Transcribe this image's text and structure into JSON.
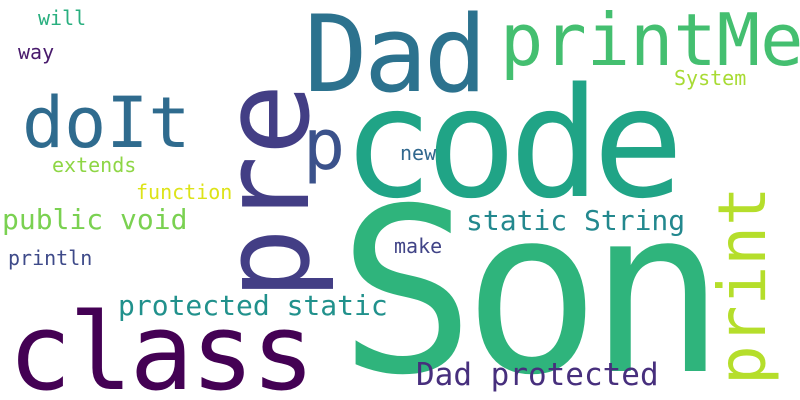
{
  "words": [
    {
      "text": "Son",
      "color": "#2fb47c"
    },
    {
      "text": "code",
      "color": "#20a486"
    },
    {
      "text": "pre",
      "color": "#433e85"
    },
    {
      "text": "class",
      "color": "#440154"
    },
    {
      "text": "Dad",
      "color": "#2c728e"
    },
    {
      "text": "printMe",
      "color": "#44bf70"
    },
    {
      "text": "doIt",
      "color": "#2f6b8e"
    },
    {
      "text": "print",
      "color": "#b5de2b"
    },
    {
      "text": "p",
      "color": "#3b528b"
    },
    {
      "text": "Dad protected",
      "color": "#472f7d"
    },
    {
      "text": "static String",
      "color": "#23888e"
    },
    {
      "text": "protected static",
      "color": "#21918c"
    },
    {
      "text": "public void",
      "color": "#7ad151"
    },
    {
      "text": "function",
      "color": "#dde318"
    },
    {
      "text": "extends",
      "color": "#8ed645"
    },
    {
      "text": "System",
      "color": "#a8db34"
    },
    {
      "text": "new",
      "color": "#31688e"
    },
    {
      "text": "make",
      "color": "#414487"
    },
    {
      "text": "println",
      "color": "#3e4a89"
    },
    {
      "text": "way",
      "color": "#481a6c"
    },
    {
      "text": "will",
      "color": "#29af7f"
    }
  ]
}
